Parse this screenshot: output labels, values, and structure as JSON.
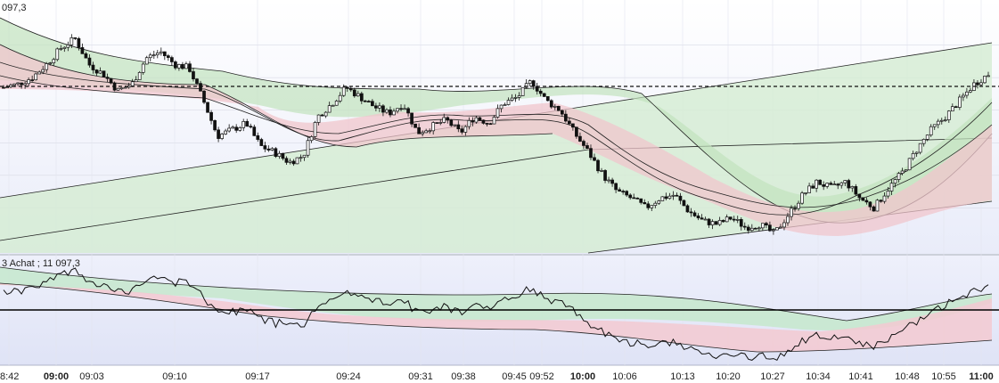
{
  "chart_data": [
    {
      "type": "candlestick",
      "panel": "price",
      "corner_label": "097,3",
      "reference_line_style": "dashed",
      "reference_value": 11097.3,
      "ylim": [
        11050,
        11120
      ],
      "grid": true,
      "x_tick_labels": [
        "8:42",
        "09:00",
        "09:03",
        "09:10",
        "09:17",
        "09:24",
        "09:31",
        "09:38",
        "09:45",
        "09:52",
        "10:00",
        "10:06",
        "10:13",
        "10:20",
        "10:27",
        "10:34",
        "10:41",
        "10:48",
        "10:55",
        "11:00"
      ],
      "bold_ticks": [
        "09:00",
        "10:00",
        "11:00"
      ],
      "close_series": [
        {
          "t": 0,
          "v": 11097
        },
        {
          "t": 2,
          "v": 11098
        },
        {
          "t": 4,
          "v": 11100
        },
        {
          "t": 6,
          "v": 11104
        },
        {
          "t": 8,
          "v": 11109
        },
        {
          "t": 10,
          "v": 11112
        },
        {
          "t": 12,
          "v": 11104
        },
        {
          "t": 14,
          "v": 11101
        },
        {
          "t": 16,
          "v": 11096
        },
        {
          "t": 18,
          "v": 11098
        },
        {
          "t": 20,
          "v": 11106
        },
        {
          "t": 22,
          "v": 11108
        },
        {
          "t": 24,
          "v": 11104
        },
        {
          "t": 26,
          "v": 11103
        },
        {
          "t": 28,
          "v": 11093
        },
        {
          "t": 30,
          "v": 11082
        },
        {
          "t": 32,
          "v": 11084
        },
        {
          "t": 34,
          "v": 11086
        },
        {
          "t": 36,
          "v": 11079
        },
        {
          "t": 38,
          "v": 11077
        },
        {
          "t": 40,
          "v": 11074
        },
        {
          "t": 42,
          "v": 11076
        },
        {
          "t": 44,
          "v": 11088
        },
        {
          "t": 46,
          "v": 11092
        },
        {
          "t": 48,
          "v": 11097
        },
        {
          "t": 50,
          "v": 11094
        },
        {
          "t": 52,
          "v": 11091
        },
        {
          "t": 54,
          "v": 11089
        },
        {
          "t": 56,
          "v": 11092
        },
        {
          "t": 58,
          "v": 11083
        },
        {
          "t": 60,
          "v": 11085
        },
        {
          "t": 62,
          "v": 11087
        },
        {
          "t": 64,
          "v": 11083
        },
        {
          "t": 66,
          "v": 11088
        },
        {
          "t": 68,
          "v": 11086
        },
        {
          "t": 70,
          "v": 11092
        },
        {
          "t": 72,
          "v": 11094
        },
        {
          "t": 74,
          "v": 11099
        },
        {
          "t": 76,
          "v": 11093
        },
        {
          "t": 78,
          "v": 11090
        },
        {
          "t": 80,
          "v": 11083
        },
        {
          "t": 82,
          "v": 11077
        },
        {
          "t": 84,
          "v": 11070
        },
        {
          "t": 86,
          "v": 11065
        },
        {
          "t": 88,
          "v": 11063
        },
        {
          "t": 90,
          "v": 11060
        },
        {
          "t": 92,
          "v": 11063
        },
        {
          "t": 94,
          "v": 11064
        },
        {
          "t": 96,
          "v": 11059
        },
        {
          "t": 98,
          "v": 11056
        },
        {
          "t": 100,
          "v": 11055
        },
        {
          "t": 102,
          "v": 11057
        },
        {
          "t": 104,
          "v": 11054
        },
        {
          "t": 106,
          "v": 11055
        },
        {
          "t": 108,
          "v": 11052
        },
        {
          "t": 110,
          "v": 11058
        },
        {
          "t": 112,
          "v": 11064
        },
        {
          "t": 114,
          "v": 11068
        },
        {
          "t": 116,
          "v": 11066
        },
        {
          "t": 118,
          "v": 11068
        },
        {
          "t": 120,
          "v": 11063
        },
        {
          "t": 122,
          "v": 11060
        },
        {
          "t": 124,
          "v": 11066
        },
        {
          "t": 126,
          "v": 11071
        },
        {
          "t": 128,
          "v": 11078
        },
        {
          "t": 130,
          "v": 11084
        },
        {
          "t": 132,
          "v": 11088
        },
        {
          "t": 134,
          "v": 11093
        },
        {
          "t": 136,
          "v": 11098
        },
        {
          "t": 138,
          "v": 11101
        }
      ]
    },
    {
      "type": "line",
      "panel": "oscillator",
      "corner_label": "3 Achat ; 11 097,3",
      "reference_line_style": "solid",
      "grid": false
    }
  ]
}
